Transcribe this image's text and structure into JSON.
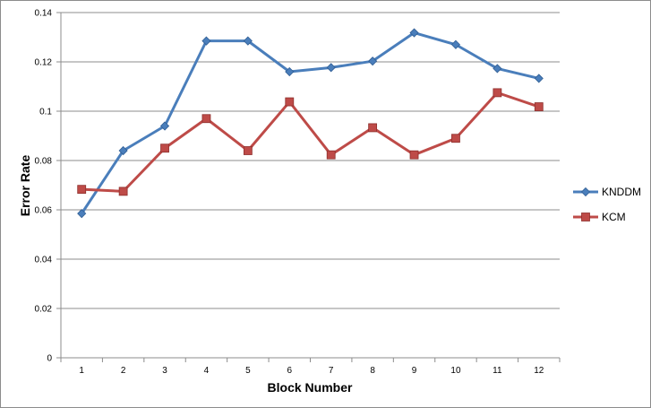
{
  "chart_data": {
    "type": "line",
    "title": "",
    "xlabel": "Block Number",
    "ylabel": "Error Rate",
    "categories": [
      "1",
      "2",
      "3",
      "4",
      "5",
      "6",
      "7",
      "8",
      "9",
      "10",
      "11",
      "12"
    ],
    "ylim": [
      0,
      0.14
    ],
    "yticks": [
      "0",
      "0.02",
      "0.04",
      "0.06",
      "0.08",
      "0.1",
      "0.12",
      "0.14"
    ],
    "grid": "horizontal",
    "legend_position": "right",
    "series": [
      {
        "name": "KNDDM",
        "color": "#4a7ebb",
        "marker": "diamond",
        "values": [
          0.0585,
          0.084,
          0.094,
          0.1285,
          0.1285,
          0.116,
          0.1177,
          0.1203,
          0.1318,
          0.127,
          0.1173,
          0.1133
        ]
      },
      {
        "name": "KCM",
        "color": "#be4b48",
        "marker": "square",
        "values": [
          0.0683,
          0.0675,
          0.085,
          0.097,
          0.084,
          0.1038,
          0.0823,
          0.0933,
          0.0823,
          0.089,
          0.1075,
          0.1018
        ]
      }
    ]
  }
}
